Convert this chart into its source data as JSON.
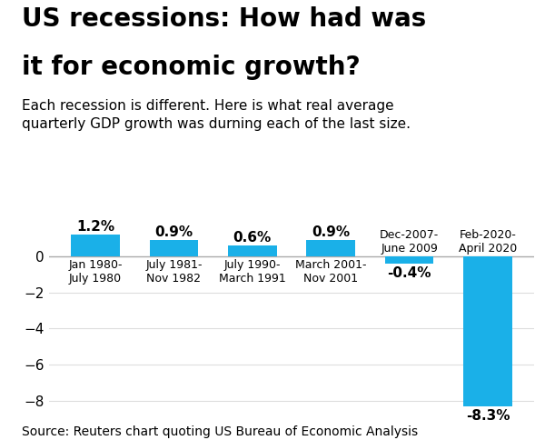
{
  "title_line1": "US recessions: How had was",
  "title_line2": "it for economic growth?",
  "subtitle": "Each recession is different. Here is what real average\nquarterly GDP growth was durning each of the last size.",
  "source": "Source: Reuters chart quoting US Bureau of Economic Analysis",
  "categories": [
    "Jan 1980-\nJuly 1980",
    "July 1981-\nNov 1982",
    "July 1990-\nMarch 1991",
    "March 2001-\nNov 2001",
    "Dec-2007-\nJune 2009",
    "Feb-2020-\nApril 2020"
  ],
  "values": [
    1.2,
    0.9,
    0.6,
    0.9,
    -0.4,
    -8.3
  ],
  "value_labels": [
    "1.2%",
    "0.9%",
    "0.6%",
    "0.9%",
    "-0.4%",
    "-8.3%"
  ],
  "bar_color": "#1ab0e8",
  "ylim": [
    -9.2,
    2.5
  ],
  "yticks": [
    -8,
    -6,
    -4,
    -2,
    0
  ],
  "background_color": "#ffffff",
  "title_fontsize": 20,
  "subtitle_fontsize": 11,
  "tick_fontsize": 11,
  "label_fontsize": 11,
  "source_fontsize": 10,
  "cat_fontsize": 9
}
